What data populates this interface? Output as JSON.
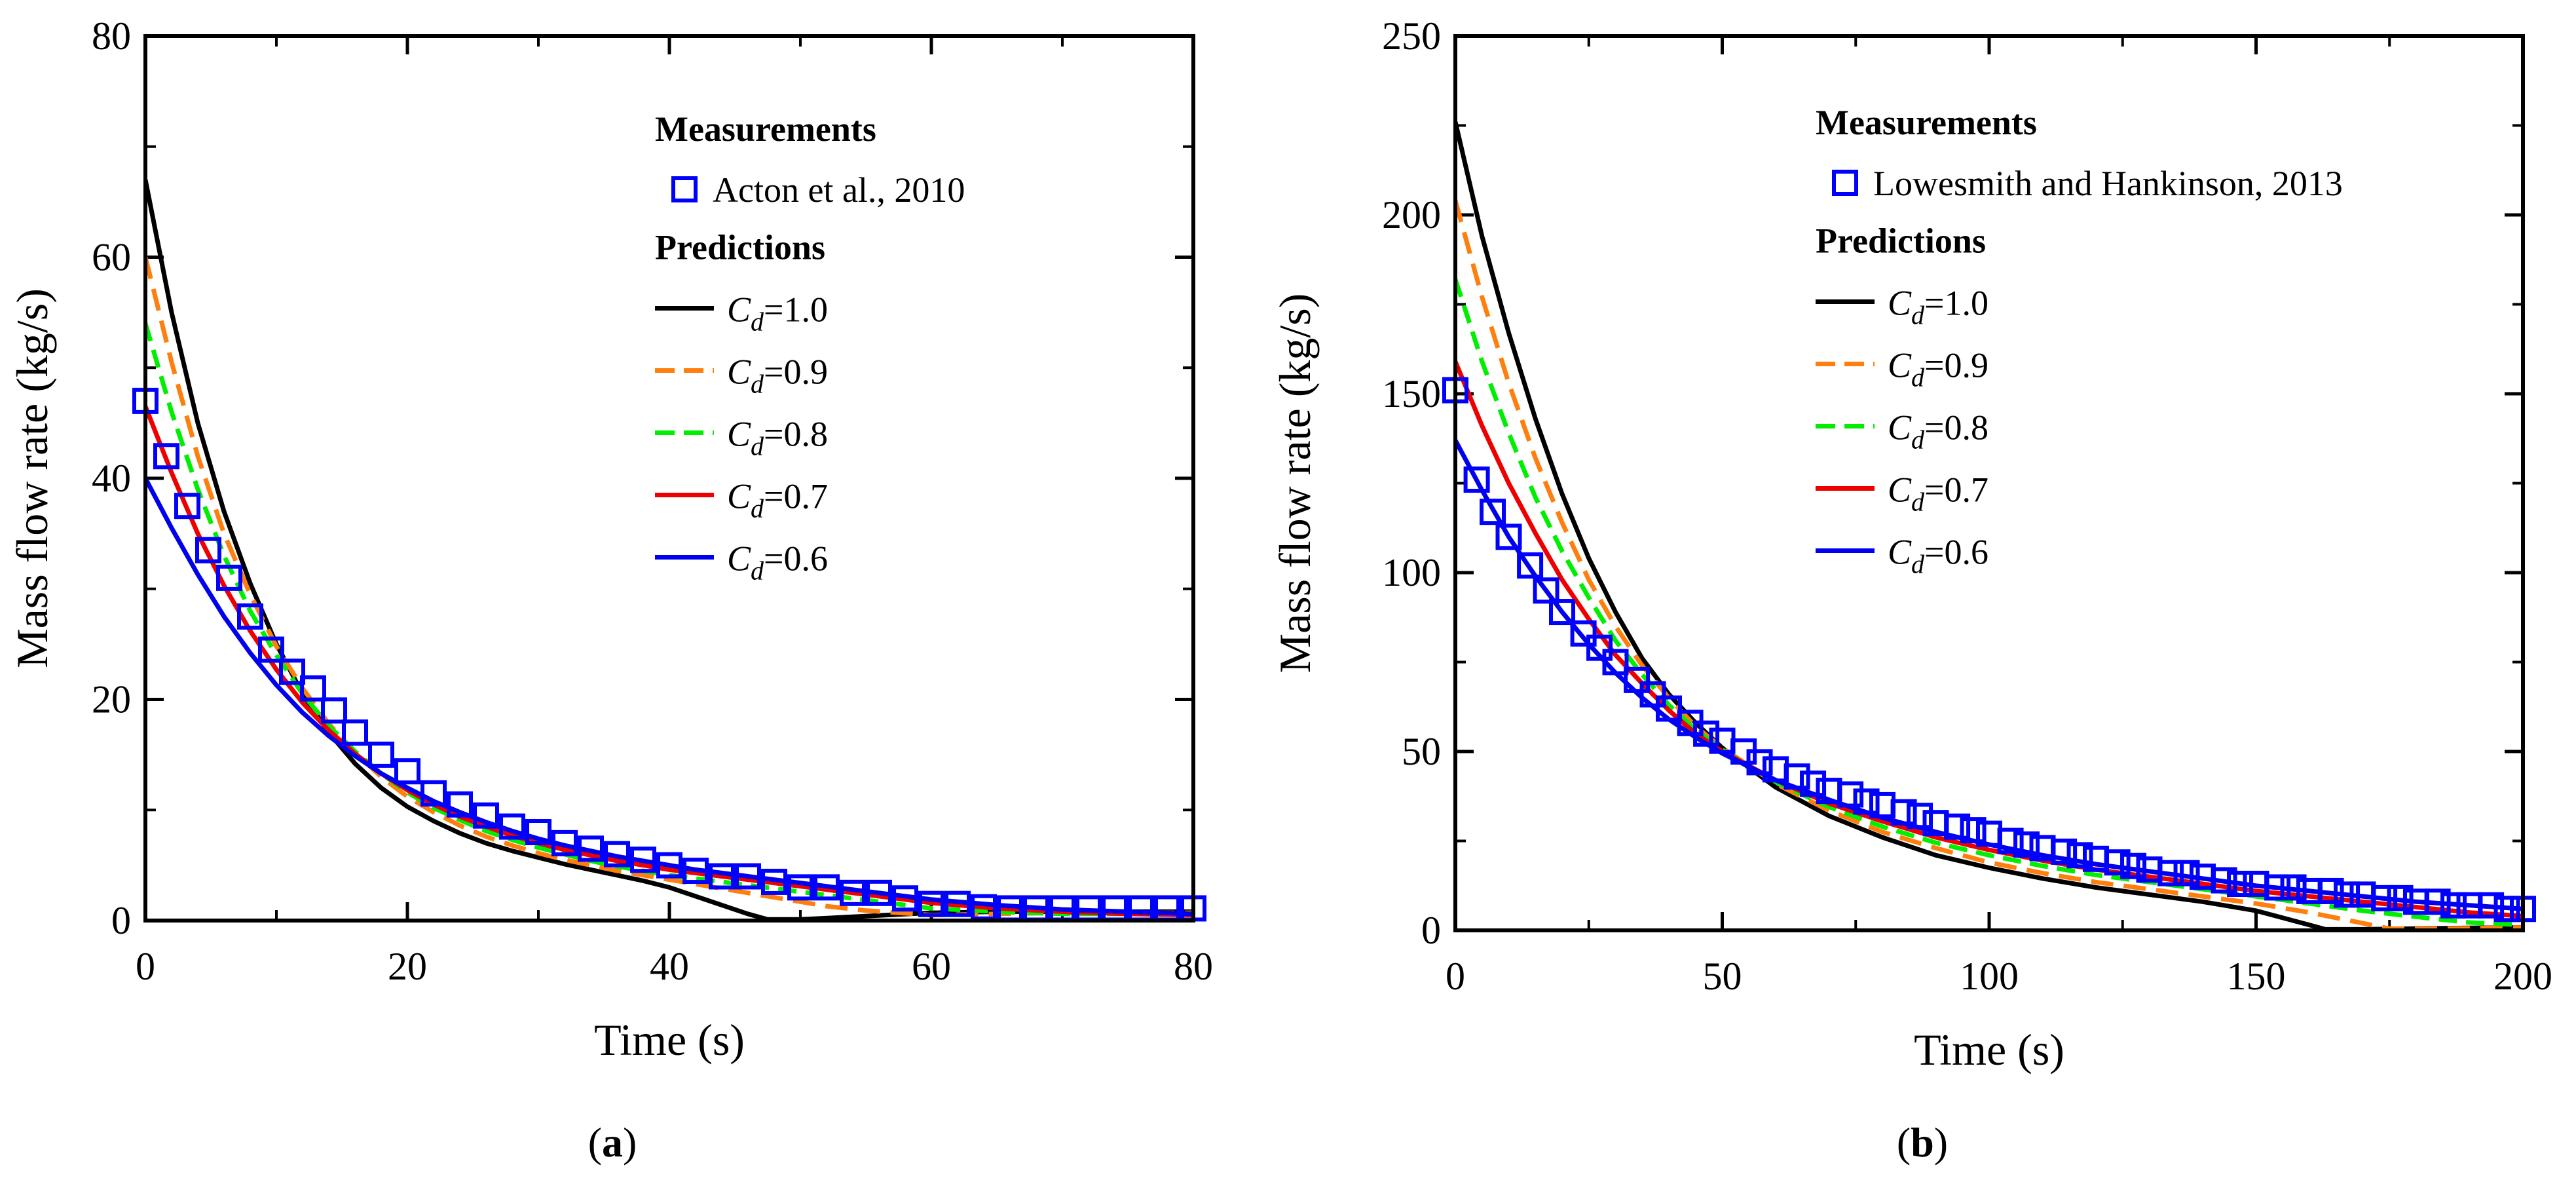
{
  "chart_data": [
    {
      "type": "line",
      "panel_label": "a",
      "xlabel": "Time (s)",
      "ylabel": "Mass flow rate (kg/s)",
      "xlim": [
        0,
        80
      ],
      "ylim": [
        0,
        80
      ],
      "xticks": [
        0,
        20,
        40,
        60,
        80
      ],
      "yticks": [
        0,
        20,
        40,
        60,
        80
      ],
      "legend": {
        "measurements_title": "Measurements",
        "measurement_label": "Acton et al., 2010",
        "predictions_title": "Predictions",
        "placement": "top-right"
      },
      "measurements": {
        "name": "Acton et al., 2010",
        "color": "#0000ff",
        "x": [
          0,
          1.6,
          3.2,
          4.8,
          6.4,
          8,
          9.6,
          11.2,
          12.8,
          14.4,
          16,
          18,
          20,
          22,
          24,
          26,
          28,
          30,
          32,
          34,
          36,
          38,
          40,
          42,
          44,
          46,
          48,
          50,
          52,
          54,
          56,
          58,
          60,
          62,
          64,
          66,
          68,
          70,
          72,
          74,
          76,
          78,
          80
        ],
        "y": [
          47,
          42,
          37.5,
          33.5,
          31,
          27.5,
          24.5,
          22.5,
          21,
          19,
          17,
          15,
          13.5,
          11.5,
          10.5,
          9.5,
          8.5,
          8,
          7,
          6.5,
          6,
          5.5,
          5,
          4.5,
          4,
          4,
          3.5,
          3,
          3,
          2.5,
          2.5,
          2,
          1.5,
          1.5,
          1.2,
          1.1,
          1.1,
          1.1,
          1.1,
          1.1,
          1.1,
          1.1,
          1.1
        ]
      },
      "series": [
        {
          "name": "Cd=1.0",
          "cd": "1.0",
          "color": "#000000",
          "dash": "",
          "x": [
            0,
            2,
            4,
            6,
            8,
            10,
            12,
            14,
            16,
            18,
            20,
            22,
            24,
            26,
            28,
            30,
            32,
            34,
            36,
            38,
            40,
            42,
            44,
            46,
            47.5,
            50,
            55,
            60,
            65,
            70,
            75,
            80
          ],
          "y": [
            67,
            55,
            45,
            37,
            30.5,
            25,
            20.5,
            17,
            14.2,
            12,
            10.3,
            9,
            7.9,
            7,
            6.3,
            5.7,
            5.1,
            4.6,
            4.1,
            3.6,
            3,
            2.2,
            1.4,
            0.6,
            0.1,
            0.1,
            0.4,
            0.7,
            0.8,
            0.8,
            0.8,
            0.8
          ]
        },
        {
          "name": "Cd=0.9",
          "cd": "0.9",
          "color": "#ff7f0e",
          "dash": "34,16",
          "x": [
            0,
            2,
            4,
            6,
            8,
            10,
            12,
            14,
            16,
            18,
            20,
            22,
            24,
            26,
            28,
            30,
            32,
            34,
            36,
            38,
            40,
            42,
            44,
            46,
            48,
            50,
            52,
            55,
            60,
            65,
            70,
            75,
            80
          ],
          "y": [
            60,
            50.5,
            42,
            35,
            29.5,
            24.8,
            21,
            17.8,
            15.2,
            13,
            11.2,
            9.8,
            8.6,
            7.6,
            6.8,
            6.1,
            5.5,
            5,
            4.5,
            4.1,
            3.7,
            3.3,
            2.9,
            2.5,
            2.1,
            1.7,
            1.3,
            0.9,
            0.5,
            0.6,
            0.7,
            0.7,
            0.7
          ]
        },
        {
          "name": "Cd=0.8",
          "cd": "0.8",
          "color": "#00ee00",
          "dash": "28,14",
          "x": [
            0,
            2,
            4,
            6,
            8,
            10,
            12,
            14,
            16,
            18,
            20,
            22,
            24,
            26,
            28,
            30,
            32,
            34,
            36,
            38,
            40,
            42,
            44,
            46,
            48,
            50,
            52,
            54,
            56,
            58,
            60,
            65,
            70,
            75,
            80
          ],
          "y": [
            54,
            46,
            39,
            33,
            28,
            24,
            20.5,
            17.6,
            15.3,
            13.3,
            11.6,
            10.2,
            9.1,
            8.1,
            7.3,
            6.6,
            6,
            5.4,
            4.9,
            4.5,
            4.1,
            3.8,
            3.5,
            3.2,
            2.9,
            2.6,
            2.3,
            2,
            1.7,
            1.4,
            1.1,
            0.8,
            0.6,
            0.6,
            0.6
          ]
        },
        {
          "name": "Cd=0.7",
          "cd": "0.7",
          "color": "#ee0000",
          "dash": "",
          "x": [
            0,
            2,
            4,
            6,
            8,
            10,
            12,
            14,
            16,
            18,
            20,
            22,
            24,
            26,
            28,
            30,
            32,
            34,
            36,
            38,
            40,
            42,
            44,
            46,
            48,
            50,
            52,
            54,
            56,
            58,
            60,
            65,
            70,
            75,
            80
          ],
          "y": [
            46.5,
            40.5,
            35,
            30.3,
            26.2,
            22.7,
            19.7,
            17.2,
            15.1,
            13.3,
            11.8,
            10.5,
            9.4,
            8.5,
            7.7,
            7,
            6.4,
            5.9,
            5.4,
            5,
            4.6,
            4.3,
            4,
            3.7,
            3.4,
            3.1,
            2.8,
            2.5,
            2.2,
            1.9,
            1.6,
            1.1,
            0.8,
            0.6,
            0.5
          ]
        },
        {
          "name": "Cd=0.6",
          "cd": "0.6",
          "color": "#0000ee",
          "dash": "",
          "x": [
            0,
            2,
            4,
            6,
            8,
            10,
            12,
            14,
            16,
            18,
            20,
            22,
            24,
            26,
            28,
            30,
            32,
            34,
            36,
            38,
            40,
            42,
            44,
            46,
            48,
            50,
            52,
            54,
            56,
            58,
            60,
            65,
            70,
            75,
            80
          ],
          "y": [
            40,
            35.5,
            31.3,
            27.5,
            24.2,
            21.3,
            18.8,
            16.7,
            14.9,
            13.3,
            12,
            10.8,
            9.8,
            8.9,
            8.1,
            7.4,
            6.8,
            6.3,
            5.8,
            5.4,
            5,
            4.6,
            4.3,
            4,
            3.7,
            3.4,
            3.1,
            2.8,
            2.5,
            2.2,
            1.9,
            1.4,
            1,
            0.8,
            0.6
          ]
        }
      ]
    },
    {
      "type": "line",
      "panel_label": "b",
      "xlabel": "Time (s)",
      "ylabel": "Mass flow rate (kg/s)",
      "xlim": [
        0,
        200
      ],
      "ylim": [
        0,
        250
      ],
      "xticks": [
        0,
        50,
        100,
        150,
        200
      ],
      "yticks": [
        0,
        50,
        100,
        150,
        200,
        250
      ],
      "legend": {
        "measurements_title": "Measurements",
        "measurement_label": "Lowesmith and Hankinson, 2013",
        "predictions_title": "Predictions",
        "placement": "top-right"
      },
      "measurements": {
        "name": "Lowesmith and Hankinson, 2013",
        "color": "#0000ff",
        "x": [
          0,
          4,
          7,
          10,
          14,
          17,
          20,
          24,
          27,
          30,
          34,
          37,
          40,
          44,
          47,
          50,
          54,
          57,
          60,
          64,
          67,
          70,
          74,
          77,
          80,
          84,
          87,
          90,
          94,
          97,
          100,
          104,
          107,
          110,
          114,
          117,
          120,
          124,
          127,
          130,
          134,
          137,
          140,
          144,
          147,
          150,
          154,
          157,
          160,
          164,
          167,
          170,
          174,
          177,
          180,
          184,
          187,
          190,
          194,
          197,
          200
        ],
        "y": [
          151,
          126,
          117,
          110,
          102,
          95,
          89,
          83,
          79,
          75,
          70,
          66,
          62,
          58,
          55,
          53,
          50,
          47,
          45,
          43,
          41,
          39,
          38,
          36,
          35,
          33,
          32,
          30,
          29,
          28,
          27,
          25,
          24,
          23,
          22,
          21,
          20,
          19,
          18,
          17,
          16,
          16,
          15,
          14,
          13,
          13,
          12,
          12,
          11,
          11,
          10,
          10,
          9,
          9,
          8,
          8,
          7,
          7,
          7,
          6,
          6
        ]
      },
      "series": [
        {
          "name": "Cd=1.0",
          "cd": "1.0",
          "color": "#000000",
          "dash": "",
          "x": [
            0,
            5,
            10,
            15,
            20,
            25,
            30,
            35,
            40,
            45,
            50,
            60,
            70,
            80,
            90,
            100,
            110,
            120,
            130,
            140,
            150,
            155,
            160,
            163,
            170,
            180,
            190,
            200
          ],
          "y": [
            226,
            194,
            167,
            143,
            122,
            104,
            89,
            76,
            66,
            58,
            51,
            40,
            32,
            26,
            21,
            17.5,
            14.5,
            12,
            10,
            8,
            5.5,
            3.5,
            1.5,
            0.3,
            0.3,
            0.5,
            0.7,
            0.8
          ]
        },
        {
          "name": "Cd=0.9",
          "cd": "0.9",
          "color": "#ff7f0e",
          "dash": "34,16",
          "x": [
            0,
            5,
            10,
            15,
            20,
            25,
            30,
            35,
            40,
            45,
            50,
            60,
            70,
            80,
            90,
            100,
            110,
            120,
            130,
            140,
            150,
            160,
            170,
            175,
            180,
            190,
            200
          ],
          "y": [
            204,
            177,
            153,
            132,
            114,
            98,
            85,
            74,
            65,
            57,
            51,
            41,
            33.5,
            27.5,
            23,
            19,
            16,
            13.5,
            11.5,
            9.5,
            7.5,
            5,
            2,
            0.5,
            0.4,
            0.6,
            0.8
          ]
        },
        {
          "name": "Cd=0.8",
          "cd": "0.8",
          "color": "#00ee00",
          "dash": "28,14",
          "x": [
            0,
            5,
            10,
            15,
            20,
            25,
            30,
            35,
            40,
            45,
            50,
            60,
            70,
            80,
            90,
            100,
            110,
            120,
            130,
            140,
            150,
            160,
            170,
            180,
            190,
            200
          ],
          "y": [
            182,
            159,
            139,
            121,
            106,
            93,
            81,
            71.5,
            63,
            56,
            50.5,
            41.5,
            34.5,
            29,
            24.5,
            21,
            18,
            15.5,
            13.5,
            11.5,
            9.5,
            7.5,
            5.5,
            3.8,
            2.2,
            1.5
          ]
        },
        {
          "name": "Cd=0.7",
          "cd": "0.7",
          "color": "#ee0000",
          "dash": "",
          "x": [
            0,
            5,
            10,
            15,
            20,
            25,
            30,
            35,
            40,
            45,
            50,
            60,
            70,
            80,
            90,
            100,
            110,
            120,
            130,
            140,
            150,
            160,
            170,
            180,
            190,
            200
          ],
          "y": [
            159,
            141,
            125,
            111,
            98,
            87,
            77,
            69,
            61.5,
            55,
            50,
            42,
            35.5,
            30.5,
            26,
            22.5,
            19.5,
            17,
            15,
            13,
            11,
            9.5,
            8,
            6.5,
            5,
            4
          ]
        },
        {
          "name": "Cd=0.6",
          "cd": "0.6",
          "color": "#0000ee",
          "dash": "",
          "x": [
            0,
            5,
            10,
            15,
            20,
            25,
            30,
            35,
            40,
            45,
            50,
            60,
            70,
            80,
            90,
            100,
            110,
            120,
            130,
            140,
            150,
            160,
            170,
            180,
            190,
            200
          ],
          "y": [
            137,
            123,
            110,
            99,
            89,
            80,
            72,
            65,
            59,
            54,
            49.5,
            42,
            36.5,
            31.5,
            27.5,
            24,
            21,
            18.5,
            16.5,
            14.5,
            12.5,
            11,
            9.5,
            8,
            7,
            6
          ]
        }
      ]
    }
  ]
}
